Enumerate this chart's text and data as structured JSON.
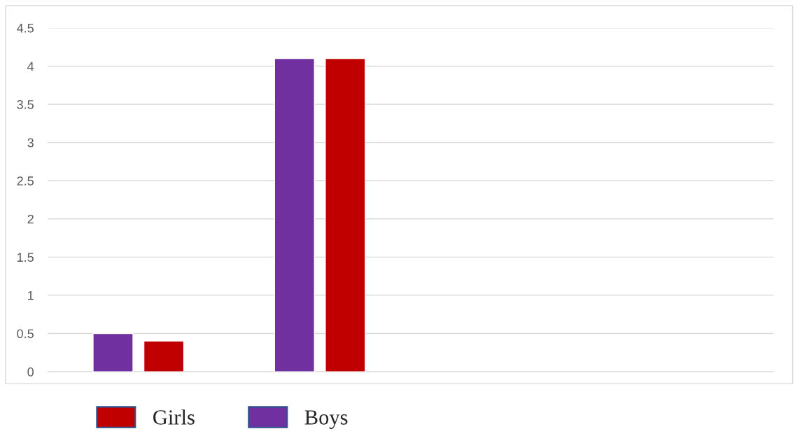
{
  "chart_data": {
    "type": "bar",
    "categories": [
      null,
      null,
      null,
      null
    ],
    "series": [
      {
        "name": "Boys",
        "color": "#7030a0",
        "values": [
          0.5,
          4.1,
          null,
          null
        ]
      },
      {
        "name": "Girls",
        "color": "#c00000",
        "values": [
          0.4,
          4.1,
          null,
          null
        ]
      }
    ],
    "ylim": [
      0,
      4.5
    ],
    "yticks": [
      0,
      0.5,
      1,
      1.5,
      2,
      2.5,
      3,
      3.5,
      4,
      4.5
    ],
    "grid": "y",
    "legend": "bottom"
  }
}
